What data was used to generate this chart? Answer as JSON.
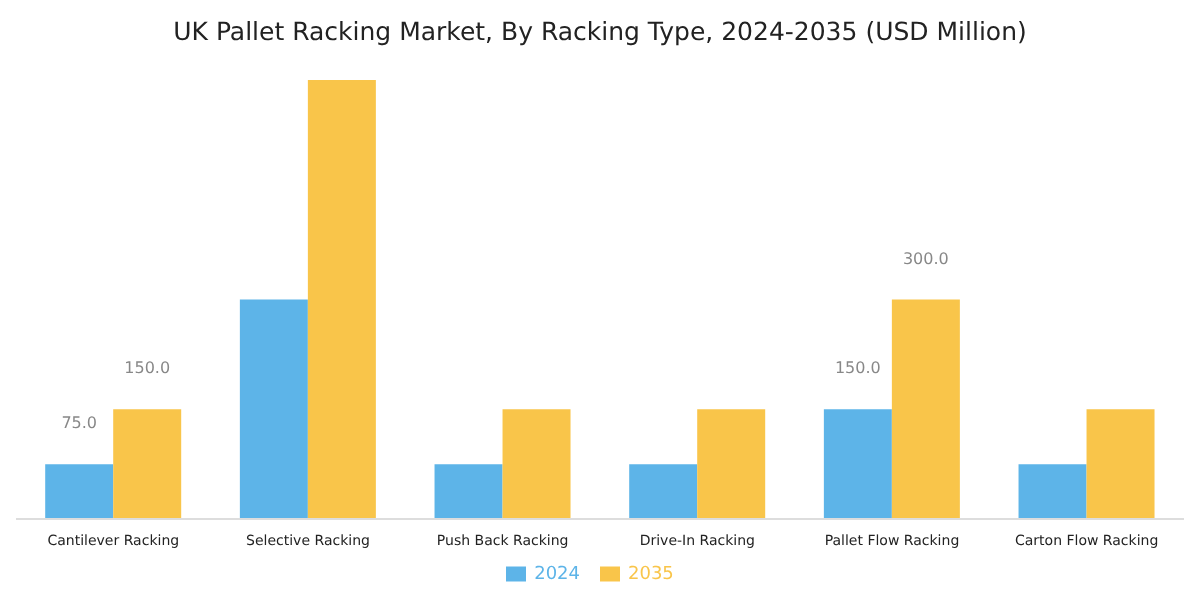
{
  "chart_data": {
    "type": "bar",
    "title": "UK Pallet Racking Market, By Racking Type, 2024-2035 (USD Million)",
    "categories": [
      "Cantilever Racking",
      "Selective Racking",
      "Push Back Racking",
      "Drive-In Racking",
      "Pallet Flow Racking",
      "Carton Flow Racking"
    ],
    "series": [
      {
        "name": "2024",
        "color": "#5db4e8",
        "values": [
          75,
          300,
          75,
          75,
          150,
          75
        ],
        "value_labels": [
          "75.0",
          null,
          null,
          null,
          "150.0",
          null
        ]
      },
      {
        "name": "2035",
        "color": "#f9c54a",
        "values": [
          150,
          600,
          150,
          150,
          300,
          150
        ],
        "value_labels": [
          "150.0",
          null,
          null,
          null,
          "300.0",
          null
        ]
      }
    ],
    "legend": "bottom",
    "grid": false
  }
}
